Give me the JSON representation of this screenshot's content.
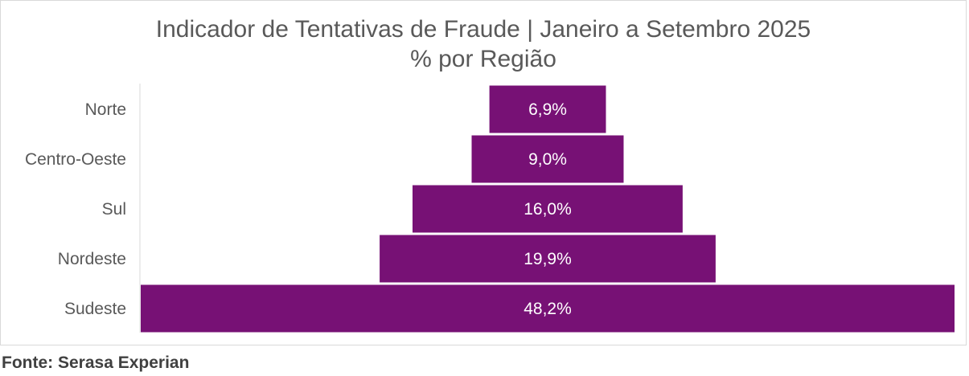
{
  "chart_data": {
    "type": "bar",
    "subtype": "centered-horizontal-funnel",
    "title": "Indicador de Tentativas de Fraude | Janeiro a Setembro 2025",
    "subtitle": "% por Região",
    "categories": [
      "Norte",
      "Centro-Oeste",
      "Sul",
      "Nordeste",
      "Sudeste"
    ],
    "values": [
      6.9,
      9.0,
      16.0,
      19.9,
      48.2
    ],
    "data_labels": [
      "6,9%",
      "9,0%",
      "16,0%",
      "19,9%",
      "48,2%"
    ],
    "unit": "%",
    "xlim": [
      0,
      48.2
    ],
    "grid": false,
    "legend": "none",
    "bar_color": "#771175",
    "label_color": "#ffffff",
    "axis_label_color": "#595959"
  },
  "footer": {
    "source": "Fonte: Serasa Experian"
  }
}
